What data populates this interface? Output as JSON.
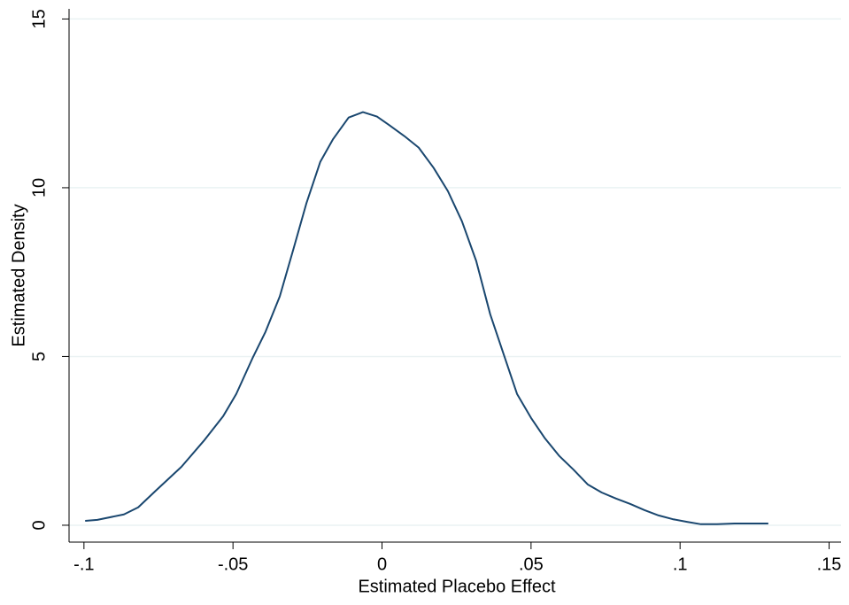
{
  "chart_data": {
    "type": "line",
    "xlabel": "Estimated Placebo Effect",
    "ylabel": "Estimated Density",
    "x": [
      -0.0996,
      -0.0955,
      -0.0866,
      -0.0818,
      -0.0762,
      -0.0673,
      -0.0598,
      -0.0533,
      -0.0489,
      -0.0435,
      -0.0391,
      -0.0343,
      -0.0296,
      -0.0254,
      -0.0207,
      -0.0165,
      -0.0112,
      -0.0064,
      -0.0017,
      0.0025,
      0.0075,
      0.0123,
      0.0173,
      0.0221,
      0.0268,
      0.0316,
      0.0363,
      0.0408,
      0.0453,
      0.05,
      0.0547,
      0.0595,
      0.0642,
      0.069,
      0.0737,
      0.0785,
      0.0833,
      0.088,
      0.0928,
      0.0975,
      0.1023,
      0.107,
      0.1124,
      0.1183,
      0.1242,
      0.1296
    ],
    "values": [
      0.13,
      0.16,
      0.32,
      0.53,
      1.0,
      1.73,
      2.5,
      3.23,
      3.89,
      4.94,
      5.73,
      6.78,
      8.22,
      9.53,
      10.77,
      11.43,
      12.08,
      12.24,
      12.11,
      11.85,
      11.53,
      11.19,
      10.59,
      9.9,
      9.01,
      7.83,
      6.25,
      5.07,
      3.89,
      3.18,
      2.57,
      2.05,
      1.65,
      1.21,
      0.97,
      0.79,
      0.63,
      0.45,
      0.29,
      0.18,
      0.1,
      0.03,
      0.03,
      0.05,
      0.05,
      0.05
    ],
    "color": "#1a476f",
    "xlim": [
      -0.105,
      0.154
    ],
    "ylim": [
      -0.5,
      15.3
    ],
    "xticks": [
      {
        "value": -0.1,
        "label": "-.1"
      },
      {
        "value": -0.05,
        "label": "-.05"
      },
      0,
      {
        "value": 0.05,
        "label": ".05"
      },
      {
        "value": 0.1,
        "label": ".1"
      },
      {
        "value": 0.15,
        "label": ".15"
      }
    ],
    "yticks": [
      0,
      5,
      10,
      15
    ],
    "grid": true
  }
}
